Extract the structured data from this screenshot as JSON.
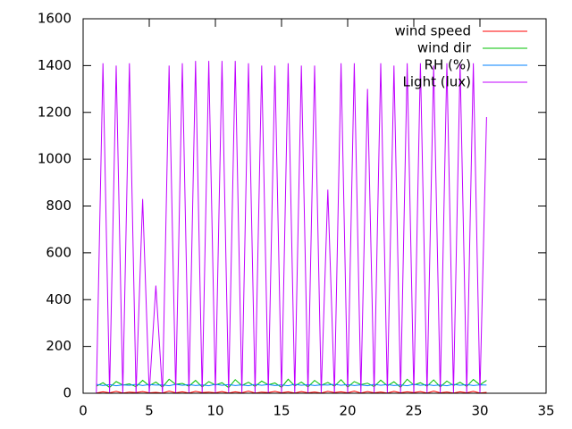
{
  "chart_data": {
    "type": "line",
    "x": [
      1,
      1.5,
      2,
      2.5,
      3,
      3.5,
      4,
      4.5,
      5,
      5.5,
      6,
      6.5,
      7,
      7.5,
      8,
      8.5,
      9,
      9.5,
      10,
      10.5,
      11,
      11.5,
      12,
      12.5,
      13,
      13.5,
      14,
      14.5,
      15,
      15.5,
      16,
      16.5,
      17,
      17.5,
      18,
      18.5,
      19,
      19.5,
      20,
      20.5,
      21,
      21.5,
      22,
      22.5,
      23,
      23.5,
      24,
      24.5,
      25,
      25.5,
      26,
      26.5,
      27,
      27.5,
      28,
      28.5,
      29,
      29.5,
      30,
      30.5
    ],
    "series": [
      {
        "name": "wind speed",
        "color": "#ff0000",
        "values": [
          1,
          6,
          2,
          8,
          1,
          5,
          3,
          7,
          2,
          4,
          1,
          9,
          2,
          6,
          1,
          8,
          3,
          5,
          2,
          7,
          1,
          6,
          2,
          9,
          1,
          5,
          3,
          8,
          2,
          6,
          1,
          7,
          2,
          5,
          1,
          8,
          3,
          6,
          2,
          9,
          1,
          7,
          2,
          5,
          1,
          8,
          2,
          6,
          3,
          7,
          1,
          9,
          2,
          5,
          1,
          6,
          2,
          8,
          1,
          4
        ]
      },
      {
        "name": "wind dir",
        "color": "#00c000",
        "values": [
          30,
          45,
          25,
          50,
          35,
          40,
          28,
          55,
          32,
          48,
          26,
          60,
          38,
          42,
          30,
          55,
          27,
          50,
          35,
          45,
          24,
          58,
          33,
          47,
          29,
          52,
          36,
          44,
          25,
          60,
          31,
          48,
          27,
          55,
          34,
          46,
          30,
          58,
          26,
          50,
          37,
          43,
          28,
          56,
          32,
          49,
          25,
          60,
          35,
          45,
          30,
          57,
          27,
          52,
          33,
          47,
          29,
          59,
          36,
          55
        ]
      },
      {
        "name": "RH (%)",
        "color": "#0080ff",
        "values": [
          38,
          33,
          37,
          32,
          36,
          34,
          38,
          33,
          37,
          35,
          36,
          32,
          38,
          34,
          37,
          33,
          36,
          32,
          38,
          34,
          37,
          33,
          36,
          32,
          38,
          34,
          37,
          33,
          36,
          32,
          38,
          34,
          37,
          33,
          36,
          35,
          38,
          34,
          37,
          33,
          36,
          32,
          38,
          34,
          37,
          33,
          36,
          32,
          38,
          34,
          37,
          33,
          36,
          32,
          38,
          34,
          37,
          33,
          36,
          35
        ]
      },
      {
        "name": "Light (lux)",
        "color": "#c000ff",
        "values": [
          0,
          1410,
          0,
          1400,
          0,
          1410,
          0,
          830,
          0,
          460,
          0,
          1400,
          0,
          1410,
          0,
          1420,
          0,
          1420,
          0,
          1420,
          0,
          1420,
          0,
          1410,
          0,
          1400,
          0,
          1400,
          0,
          1410,
          0,
          1400,
          0,
          1400,
          0,
          870,
          0,
          1410,
          0,
          1410,
          0,
          1300,
          0,
          1410,
          0,
          1400,
          0,
          1410,
          0,
          1410,
          0,
          1400,
          0,
          1410,
          0,
          1410,
          0,
          1410,
          0,
          1180
        ]
      }
    ],
    "xlim": [
      0,
      35
    ],
    "xticks": [
      0,
      5,
      10,
      15,
      20,
      25,
      30,
      35
    ],
    "ylim": [
      0,
      1600
    ],
    "yticks": [
      0,
      200,
      400,
      600,
      800,
      1000,
      1200,
      1400,
      1600
    ],
    "legend": "top-right"
  }
}
